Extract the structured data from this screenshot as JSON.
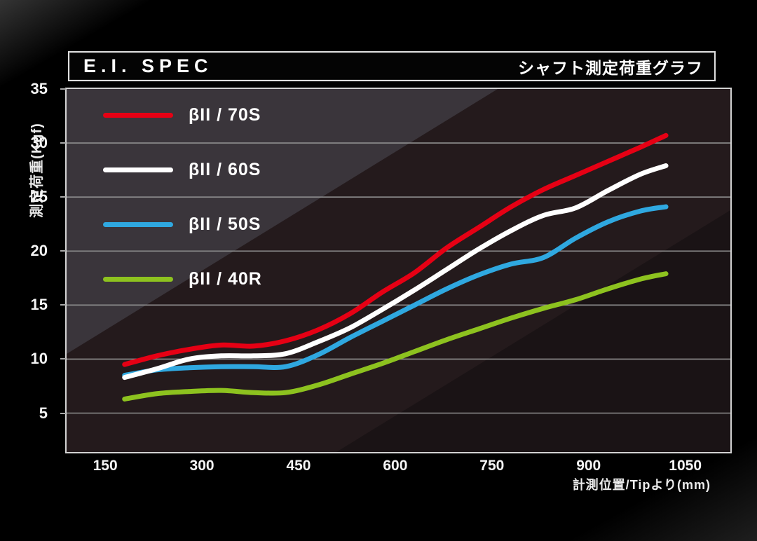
{
  "header": {
    "title": "E.I. SPEC",
    "subtitle": "シャフト測定荷重グラフ"
  },
  "chart_data": {
    "type": "line",
    "title": "E.I. SPEC",
    "subtitle": "シャフト測定荷重グラフ",
    "xlabel": "計測位置/Tipより(mm)",
    "ylabel": "測定荷重(Kgf)",
    "x_ticks": [
      150,
      300,
      450,
      600,
      750,
      900,
      1050
    ],
    "y_ticks": [
      5,
      10,
      15,
      20,
      25,
      30,
      35
    ],
    "x_domain": [
      90,
      1120
    ],
    "y_domain": [
      1.4,
      35
    ],
    "grid": "horizontal gridlines at every 5 Kgf",
    "legend_position": "top-left inside plot",
    "x": [
      180,
      230,
      280,
      330,
      380,
      430,
      480,
      530,
      580,
      630,
      680,
      730,
      780,
      830,
      880,
      930,
      980,
      1020
    ],
    "series": [
      {
        "name": "βII / 70S",
        "color": "#e60014",
        "values": [
          9.5,
          10.3,
          10.9,
          11.3,
          11.2,
          11.7,
          12.7,
          14.2,
          16.2,
          18.0,
          20.3,
          22.2,
          24.1,
          25.7,
          27.0,
          28.3,
          29.6,
          30.7
        ]
      },
      {
        "name": "βII / 60S",
        "color": "#ffffff",
        "values": [
          8.3,
          9.1,
          10.0,
          10.3,
          10.3,
          10.5,
          11.6,
          12.9,
          14.6,
          16.4,
          18.3,
          20.2,
          21.9,
          23.3,
          24.0,
          25.6,
          27.1,
          27.9
        ]
      },
      {
        "name": "βII / 50S",
        "color": "#2fa8e0",
        "values": [
          8.5,
          9.0,
          9.2,
          9.3,
          9.3,
          9.3,
          10.4,
          12.0,
          13.5,
          15.0,
          16.5,
          17.8,
          18.8,
          19.4,
          21.2,
          22.7,
          23.7,
          24.1
        ]
      },
      {
        "name": "βII / 40R",
        "color": "#8dc21f",
        "values": [
          6.3,
          6.8,
          7.0,
          7.1,
          6.9,
          6.9,
          7.6,
          8.6,
          9.6,
          10.7,
          11.8,
          12.8,
          13.8,
          14.7,
          15.5,
          16.5,
          17.4,
          17.9
        ]
      }
    ],
    "colors": {
      "gridline": "#8f8f8f",
      "plot_background": "#241a1c",
      "plot_highlight": "#3a353b",
      "plot_shadow": "#1a1315",
      "border": "#d2d2d2"
    }
  }
}
